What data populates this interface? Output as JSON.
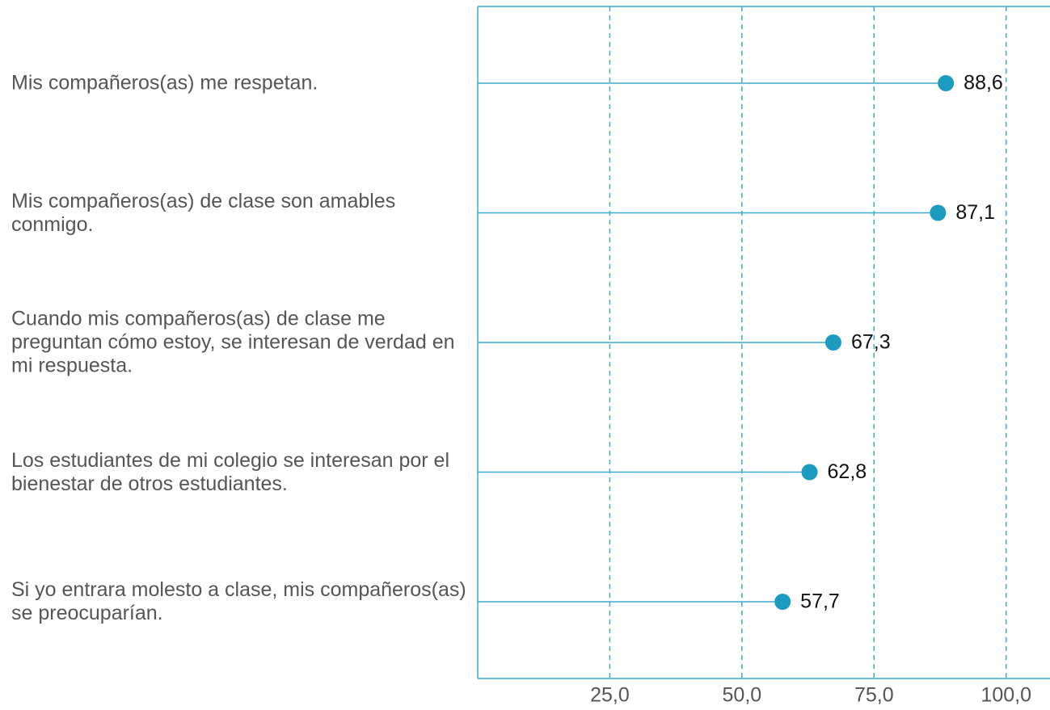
{
  "chart_data": {
    "type": "lollipop",
    "categories": [
      "Mis compañeros(as) me respetan.",
      "Mis compañeros(as) de clase son amables conmigo.",
      "Cuando mis compañeros(as) de clase me preguntan cómo estoy, se interesan de verdad en mi respuesta.",
      "Los estudiantes de mi colegio se interesan por el bienestar de otros estudiantes.",
      "Si yo entrara molesto a clase, mis compañeros(as) se preocuparían."
    ],
    "values": [
      88.6,
      87.1,
      67.3,
      62.8,
      57.7
    ],
    "value_labels": [
      "88,6",
      "87,1",
      "67,3",
      "62,8",
      "57,7"
    ],
    "color": "#1a9bbf",
    "xlim": [
      0,
      108
    ],
    "xticks": [
      {
        "value": 25,
        "label": "25,0"
      },
      {
        "value": 50,
        "label": "50,0"
      },
      {
        "value": 75,
        "label": "75,0"
      },
      {
        "value": 100,
        "label": "100,0"
      }
    ],
    "grid": true
  }
}
